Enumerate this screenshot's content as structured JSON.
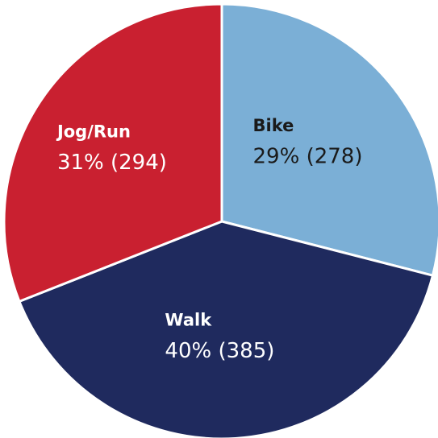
{
  "chart_data": {
    "type": "pie",
    "categories": [
      "Bike",
      "Walk",
      "Jog/Run"
    ],
    "values": [
      29,
      40,
      31
    ],
    "value_labels": [
      "29% (278)",
      "40% (385)",
      "31% (294)"
    ],
    "colors": [
      "#7bafd6",
      "#1f2a5e",
      "#c92030"
    ],
    "label_colors": [
      "#1a1a1a",
      "#ffffff",
      "#ffffff"
    ]
  }
}
